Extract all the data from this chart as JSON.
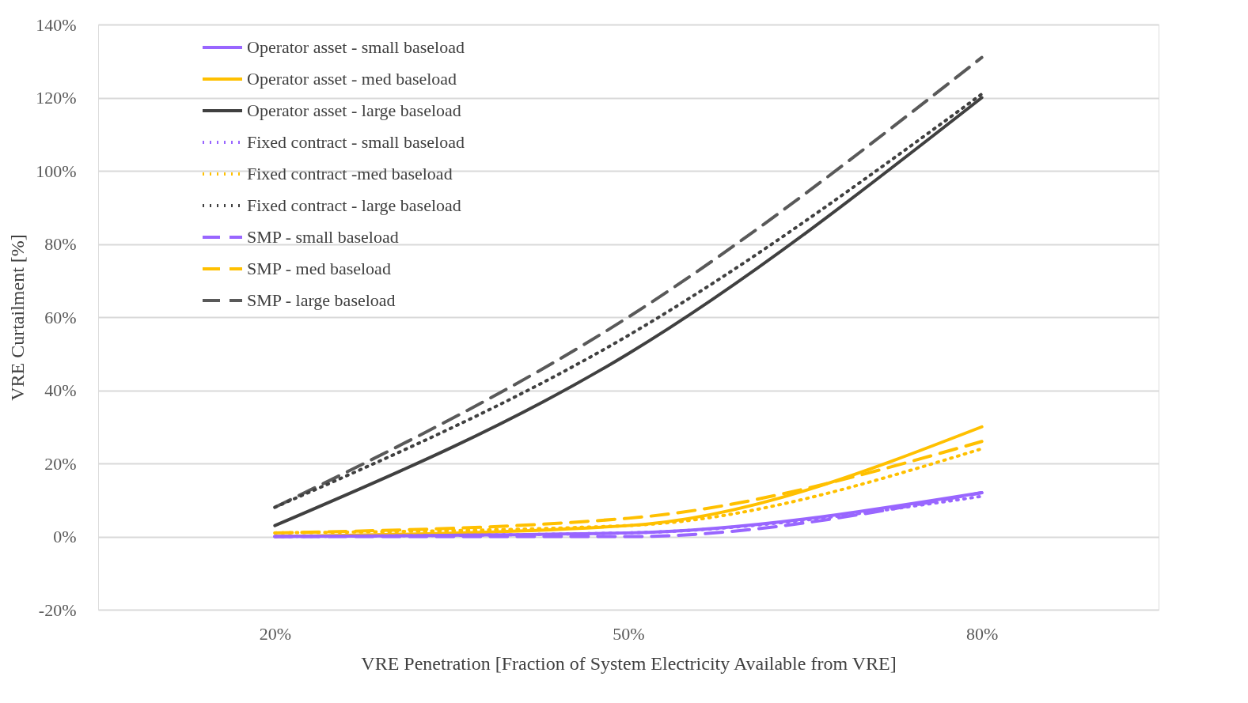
{
  "chart_data": {
    "type": "line",
    "xlabel": "VRE Penetration [Fraction of System Electricity Available from VRE]",
    "ylabel": "VRE Curtailment [%]",
    "categories": [
      "20%",
      "50%",
      "80%"
    ],
    "ylim": [
      -20,
      140
    ],
    "yticks": [
      {
        "value": -20,
        "label": "-20%"
      },
      {
        "value": 0,
        "label": "0%"
      },
      {
        "value": 20,
        "label": "20%"
      },
      {
        "value": 40,
        "label": "40%"
      },
      {
        "value": 60,
        "label": "60%"
      },
      {
        "value": 80,
        "label": "80%"
      },
      {
        "value": 100,
        "label": "100%"
      },
      {
        "value": 120,
        "label": "120%"
      },
      {
        "value": 140,
        "label": "140%"
      }
    ],
    "grid": "y",
    "legend": "top left",
    "marker": "none",
    "series": [
      {
        "name": "Operator asset - small baseload",
        "color": "#9966ff",
        "line_style": "solid",
        "values": [
          0,
          1,
          12
        ]
      },
      {
        "name": "Operator asset - med baseload",
        "color": "#ffc000",
        "line_style": "solid",
        "values": [
          0,
          3,
          30
        ]
      },
      {
        "name": "Operator asset - large baseload",
        "color": "#404040",
        "line_style": "solid",
        "values": [
          3,
          50,
          120
        ]
      },
      {
        "name": "Fixed contract - small baseload",
        "color": "#9966ff",
        "line_style": "dotted",
        "values": [
          0,
          1,
          11
        ]
      },
      {
        "name": "Fixed contract -med baseload",
        "color": "#ffc000",
        "line_style": "dotted",
        "values": [
          1,
          3,
          24
        ]
      },
      {
        "name": "Fixed contract - large baseload",
        "color": "#404040",
        "line_style": "dotted",
        "values": [
          8,
          55,
          121
        ]
      },
      {
        "name": "SMP - small baseload",
        "color": "#9966ff",
        "line_style": "dashed",
        "values": [
          0,
          0,
          12
        ]
      },
      {
        "name": "SMP - med baseload",
        "color": "#ffc000",
        "line_style": "dashed",
        "values": [
          1,
          5,
          26
        ]
      },
      {
        "name": "SMP - large baseload",
        "color": "#595959",
        "line_style": "dashed",
        "values": [
          8,
          60,
          131
        ]
      }
    ]
  }
}
